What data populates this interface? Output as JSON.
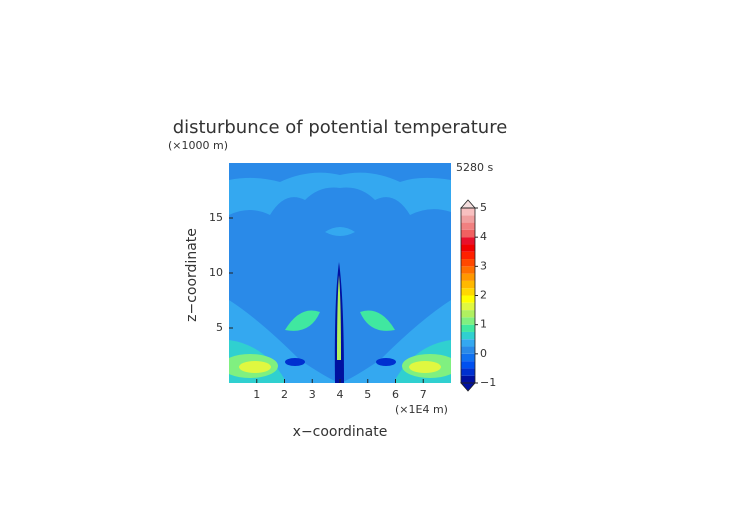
{
  "chart_data": {
    "type": "contour",
    "title": "disturbunce of potential temperature",
    "x_label": "x−coordinate",
    "y_label": "z−coordinate",
    "x_unit": "(×1E4 m)",
    "y_unit": "(×1000 m)",
    "time_label": "5280 s",
    "xlim": [
      0,
      8
    ],
    "xticks": [
      1,
      2,
      3,
      4,
      5,
      6,
      7
    ],
    "ylim": [
      0,
      20
    ],
    "yticks": [
      5,
      10,
      15
    ],
    "colorbar": {
      "bounds": [
        -1,
        -0.75,
        -0.5,
        -0.25,
        0,
        0.25,
        0.5,
        0.75,
        1,
        1.25,
        1.5,
        1.75,
        2,
        2.25,
        2.5,
        2.75,
        3,
        3.25,
        3.5,
        3.75,
        4,
        4.25,
        4.5,
        4.75,
        5
      ],
      "colors": [
        "#0010a0",
        "#0030d0",
        "#0050f0",
        "#1070f0",
        "#2a8ae8",
        "#34a8f0",
        "#30d0d0",
        "#40e8a0",
        "#80f080",
        "#b0f060",
        "#e0f840",
        "#ffff00",
        "#ffd800",
        "#ffb800",
        "#ff9800",
        "#ff7000",
        "#ff4800",
        "#ff2000",
        "#f00000",
        "#e8102a",
        "#f06060",
        "#f08080",
        "#f0a0a0",
        "#f8c0c0"
      ],
      "extend_low_color": "#0010a0",
      "extend_high_color": "#f4dede",
      "ticks": [
        {
          "value": -1,
          "label": "−1"
        },
        0,
        1,
        2,
        3,
        4,
        5
      ]
    }
  }
}
